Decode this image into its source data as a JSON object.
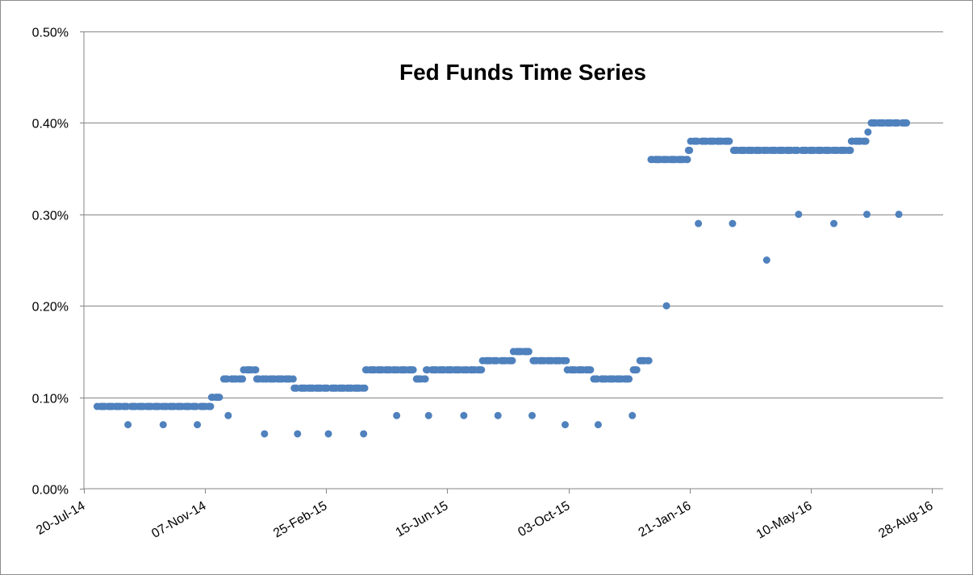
{
  "chart_data": {
    "type": "scatter",
    "title": "Fed Funds Time Series",
    "xlabel": "",
    "ylabel": "",
    "x_axis": {
      "type": "date",
      "min": "2014-07-20",
      "max": "2016-08-28",
      "tick_dates": [
        "2014-07-20",
        "2014-11-07",
        "2015-02-25",
        "2015-06-15",
        "2015-10-03",
        "2016-01-21",
        "2016-05-10",
        "2016-08-28"
      ],
      "tick_labels": [
        "20-Jul-14",
        "07-Nov-14",
        "25-Feb-15",
        "15-Jun-15",
        "03-Oct-15",
        "21-Jan-16",
        "10-May-16",
        "28-Aug-16"
      ]
    },
    "y_axis": {
      "min": 0,
      "max": 0.5,
      "unit": "%",
      "ticks": [
        0,
        0.1,
        0.2,
        0.3,
        0.4,
        0.5
      ],
      "tick_labels": [
        "0.00%",
        "0.10%",
        "0.20%",
        "0.30%",
        "0.40%",
        "0.50%"
      ]
    },
    "grid": "horizontal",
    "legend": "none",
    "marker_color": "#4f81bd",
    "segments": [
      {
        "start": "2014-08-01",
        "end": "2014-11-12",
        "value": 0.09
      },
      {
        "start": "2014-11-13",
        "end": "2014-11-20",
        "value": 0.1
      },
      {
        "start": "2014-11-24",
        "end": "2014-12-11",
        "value": 0.12
      },
      {
        "start": "2014-12-12",
        "end": "2014-12-23",
        "value": 0.13
      },
      {
        "start": "2014-12-24",
        "end": "2015-01-26",
        "value": 0.12
      },
      {
        "start": "2015-01-27",
        "end": "2015-04-01",
        "value": 0.11
      },
      {
        "start": "2015-04-02",
        "end": "2015-05-15",
        "value": 0.13
      },
      {
        "start": "2015-05-18",
        "end": "2015-05-26",
        "value": 0.12
      },
      {
        "start": "2015-05-27",
        "end": "2015-07-16",
        "value": 0.13
      },
      {
        "start": "2015-07-17",
        "end": "2015-08-13",
        "value": 0.14
      },
      {
        "start": "2015-08-14",
        "end": "2015-08-31",
        "value": 0.15
      },
      {
        "start": "2015-09-01",
        "end": "2015-10-01",
        "value": 0.14
      },
      {
        "start": "2015-10-02",
        "end": "2015-10-23",
        "value": 0.13
      },
      {
        "start": "2015-10-26",
        "end": "2015-11-27",
        "value": 0.12
      },
      {
        "start": "2015-11-30",
        "end": "2015-12-04",
        "value": 0.13
      },
      {
        "start": "2015-12-07",
        "end": "2015-12-15",
        "value": 0.14
      },
      {
        "start": "2015-12-17",
        "end": "2016-01-19",
        "value": 0.36
      },
      {
        "start": "2016-01-20",
        "end": "2016-01-21",
        "value": 0.37
      },
      {
        "start": "2016-01-22",
        "end": "2016-02-29",
        "value": 0.38
      },
      {
        "start": "2016-03-01",
        "end": "2016-06-15",
        "value": 0.37
      },
      {
        "start": "2016-06-16",
        "end": "2016-06-29",
        "value": 0.38
      },
      {
        "start": "2016-06-30",
        "end": "2016-07-01",
        "value": 0.39
      },
      {
        "start": "2016-07-02",
        "end": "2016-08-05",
        "value": 0.4
      }
    ],
    "points": [
      {
        "date": "2014-08-29",
        "value": 0.07
      },
      {
        "date": "2014-09-30",
        "value": 0.07
      },
      {
        "date": "2014-10-31",
        "value": 0.07
      },
      {
        "date": "2014-11-28",
        "value": 0.08
      },
      {
        "date": "2014-12-31",
        "value": 0.06
      },
      {
        "date": "2015-01-30",
        "value": 0.06
      },
      {
        "date": "2015-02-27",
        "value": 0.06
      },
      {
        "date": "2015-03-31",
        "value": 0.06
      },
      {
        "date": "2015-04-30",
        "value": 0.08
      },
      {
        "date": "2015-05-29",
        "value": 0.08
      },
      {
        "date": "2015-06-30",
        "value": 0.08
      },
      {
        "date": "2015-07-31",
        "value": 0.08
      },
      {
        "date": "2015-08-31",
        "value": 0.08
      },
      {
        "date": "2015-09-30",
        "value": 0.07
      },
      {
        "date": "2015-10-30",
        "value": 0.07
      },
      {
        "date": "2015-11-30",
        "value": 0.08
      },
      {
        "date": "2015-12-31",
        "value": 0.2
      },
      {
        "date": "2016-01-29",
        "value": 0.29
      },
      {
        "date": "2016-02-29",
        "value": 0.29
      },
      {
        "date": "2016-03-31",
        "value": 0.25
      },
      {
        "date": "2016-04-29",
        "value": 0.3
      },
      {
        "date": "2016-05-31",
        "value": 0.29
      },
      {
        "date": "2016-06-30",
        "value": 0.3
      },
      {
        "date": "2016-07-29",
        "value": 0.3
      }
    ]
  }
}
